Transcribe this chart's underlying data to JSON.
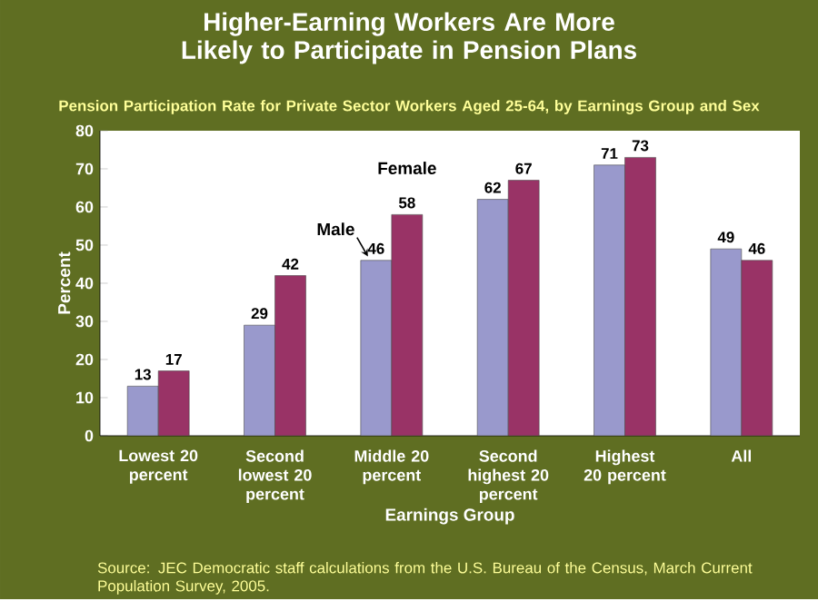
{
  "chart_data": {
    "type": "bar",
    "title": "Higher-Earning Workers Are More Likely to Participate in Pension Plans",
    "subtitle": "Pension Participation Rate for Private Sector Workers Aged 25-64, by Earnings Group and Sex",
    "xlabel": "Earnings Group",
    "ylabel": "Percent",
    "categories": [
      "Lowest 20 percent",
      "Second lowest 20 percent",
      "Middle 20 percent",
      "Second highest 20 percent",
      "Highest 20 percent",
      "All"
    ],
    "series": [
      {
        "name": "Male",
        "color": "#9999cc",
        "values": [
          13,
          29,
          46,
          62,
          71,
          49
        ]
      },
      {
        "name": "Female",
        "color": "#993366",
        "values": [
          17,
          42,
          58,
          67,
          73,
          46
        ]
      }
    ],
    "ylim": [
      0,
      80
    ],
    "yticks": [
      0,
      10,
      20,
      30,
      40,
      50,
      60,
      70,
      80
    ],
    "grid": false,
    "legend": false,
    "data_labels": true,
    "annotations": [
      "Source: JEC Democratic staff calculations from the U.S. Bureau of the Census, March Current Population Survey, 2005."
    ]
  }
}
